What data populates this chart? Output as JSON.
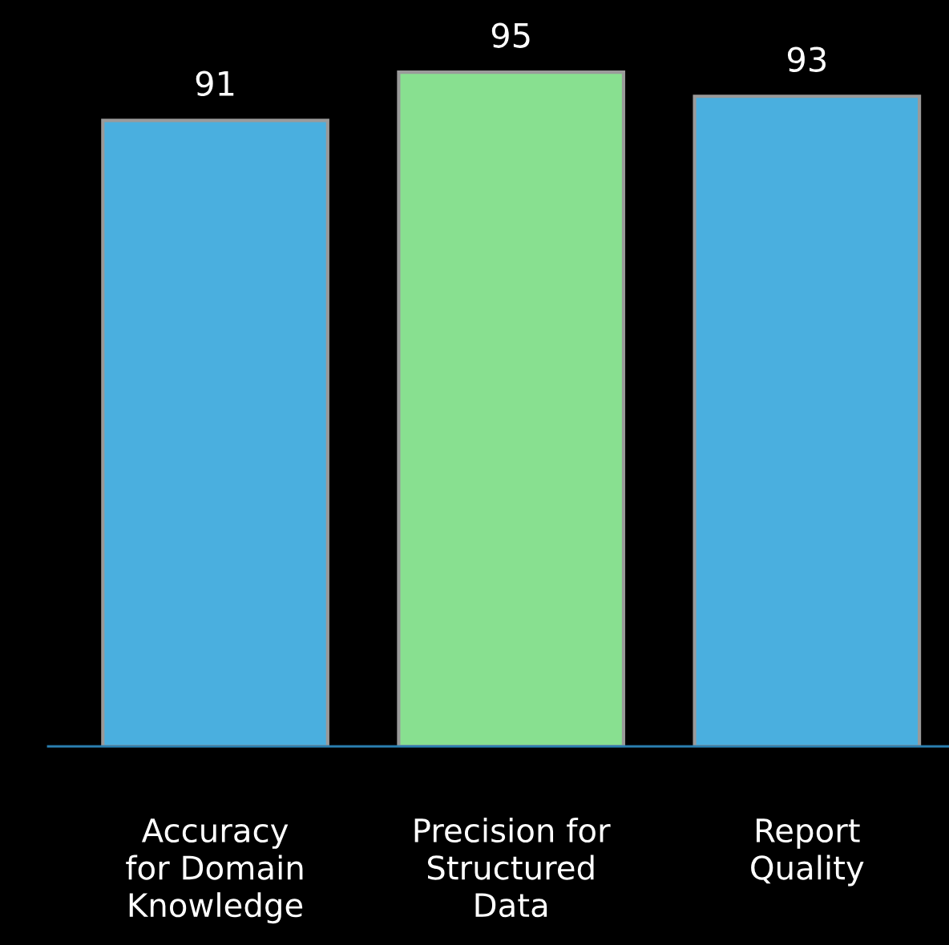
{
  "chart_data": {
    "type": "bar",
    "categories": [
      "Accuracy\nfor Domain\nKnowledge",
      "Precision for\nStructured\nData",
      "Report\nQuality"
    ],
    "values": [
      91,
      95,
      93
    ],
    "colors": [
      "#4aafdf",
      "#88e090",
      "#4aafdf"
    ],
    "ylim": [
      39,
      101
    ],
    "data_labels": true,
    "grid": false,
    "legend": false,
    "tick_labels": "x"
  }
}
